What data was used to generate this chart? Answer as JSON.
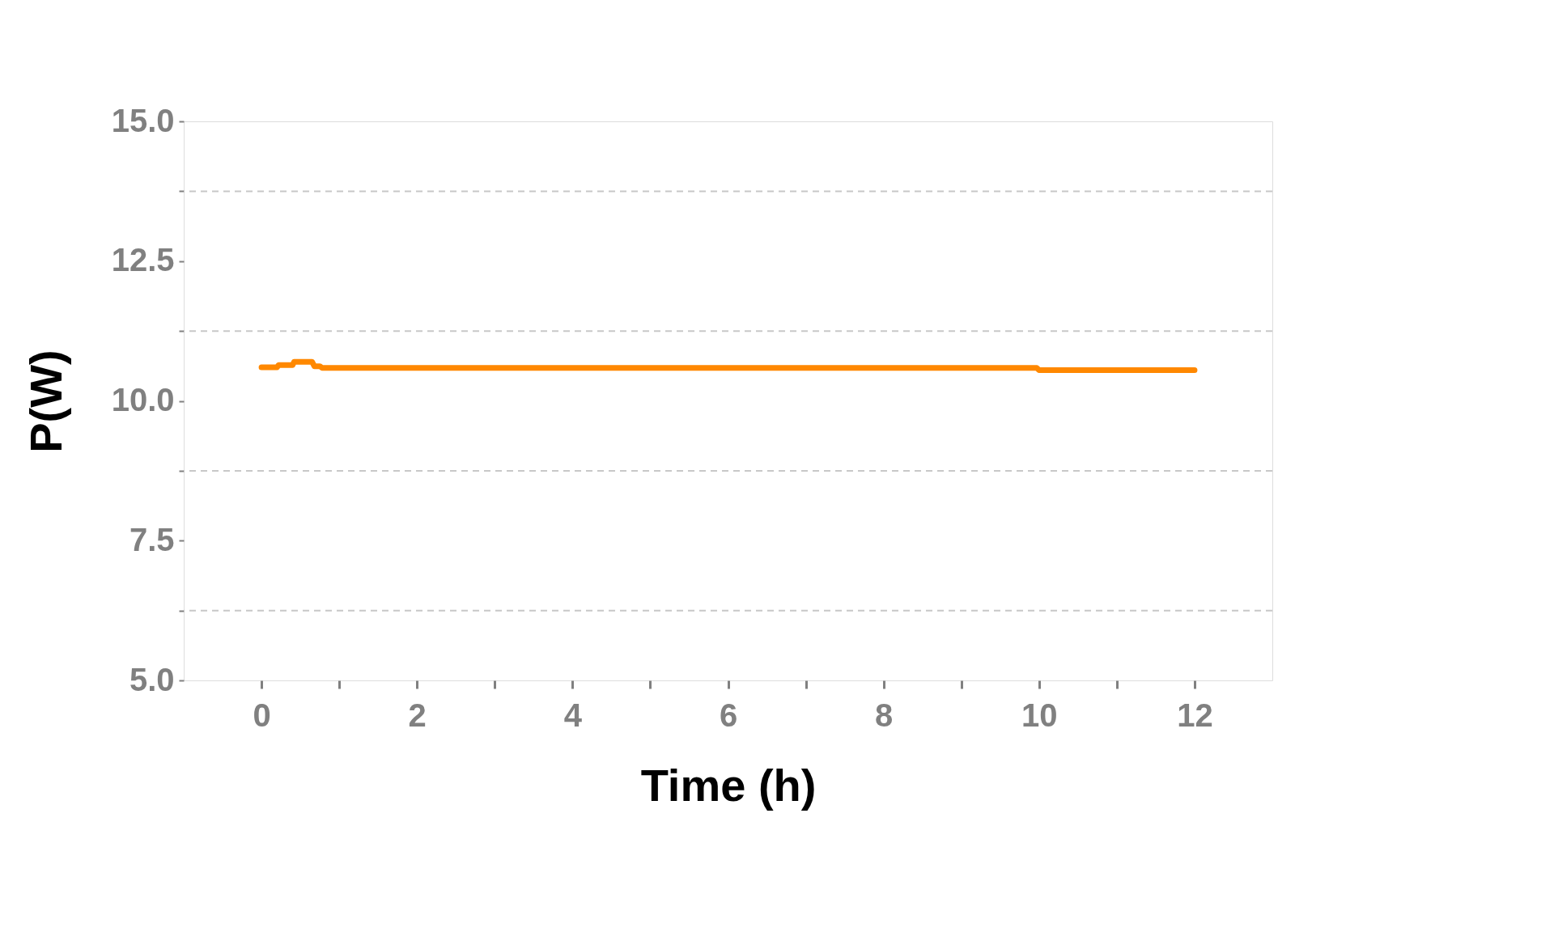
{
  "chart_data": {
    "type": "line",
    "xlabel": "Time (h)",
    "ylabel": "P(W)",
    "xlim": [
      -1,
      13
    ],
    "xticks": [
      0,
      {
        "value": 1,
        "label": null
      },
      2,
      {
        "value": 3,
        "label": null
      },
      4,
      {
        "value": 5,
        "label": null
      },
      6,
      {
        "value": 7,
        "label": null
      },
      8,
      {
        "value": 9,
        "label": null
      },
      10,
      {
        "value": 11,
        "label": null
      },
      12
    ],
    "ylim": [
      5,
      15
    ],
    "yticks": [
      {
        "value": 5,
        "label": "5.0"
      },
      {
        "value": 6.25,
        "label": null
      },
      {
        "value": 7.5,
        "label": "7.5"
      },
      {
        "value": 8.75,
        "label": null
      },
      {
        "value": 10,
        "label": "10.0"
      },
      {
        "value": 11.25,
        "label": null
      },
      {
        "value": 12.5,
        "label": "12.5"
      },
      {
        "value": 13.75,
        "label": null
      },
      {
        "value": 15,
        "label": "15.0"
      }
    ],
    "grid": "y",
    "marker": "none",
    "line_style": "solid",
    "x": [
      0,
      0.2,
      0.22,
      0.4,
      0.42,
      0.65,
      0.68,
      0.75,
      0.78,
      9.97,
      10.0,
      12.0
    ],
    "series": [
      {
        "color": "#ff8800",
        "values": [
          10.6,
          10.6,
          10.64,
          10.64,
          10.7,
          10.7,
          10.62,
          10.62,
          10.59,
          10.59,
          10.55,
          10.55
        ]
      }
    ]
  }
}
